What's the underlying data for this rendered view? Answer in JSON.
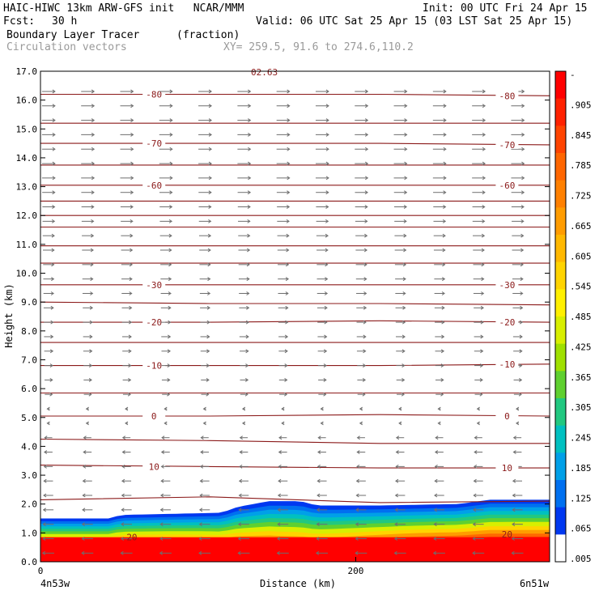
{
  "header": {
    "title_left": "HAIC-HIWC 13km ARW-GFS init   NCAR/MMM",
    "init": "Init: 00 UTC Fri 24 Apr 15",
    "fcst_label": "Fcst:",
    "fcst_value": "30 h",
    "valid": "Valid: 06 UTC Sat 25 Apr 15 (03 LST Sat 25 Apr 15)",
    "field_name": "Boundary Layer Tracer",
    "field_units": "(fraction)",
    "vector_name": "Circulation vectors",
    "xy": "XY= 259.5, 91.6 to 274.6,110.2"
  },
  "chart_data": {
    "type": "heatmap",
    "title": "Boundary Layer Tracer",
    "xlabel": "Distance (km)",
    "ylabel": "Height (km)",
    "xlim": [
      0,
      323
    ],
    "ylim": [
      0.0,
      17.0
    ],
    "x_ticks": [
      {
        "value": 0,
        "label": "0"
      },
      {
        "value": 200,
        "label": "200"
      }
    ],
    "x_end_labels": {
      "left": "4n53w",
      "right": "6n51w"
    },
    "y_ticks": [
      "0.0",
      "1.0",
      "2.0",
      "3.0",
      "4.0",
      "5.0",
      "6.0",
      "7.0",
      "8.0",
      "9.0",
      "10.0",
      "11.0",
      "12.0",
      "13.0",
      "14.0",
      "15.0",
      "16.0",
      "17.0"
    ],
    "colorbar": {
      "labels": [
        "-",
        ".905",
        ".845",
        ".785",
        ".725",
        ".665",
        ".605",
        ".545",
        ".485",
        ".425",
        ".365",
        ".305",
        ".245",
        ".185",
        ".125",
        ".065",
        ".005"
      ],
      "colors": [
        "#ff0000",
        "#ff2200",
        "#ff4400",
        "#ff6600",
        "#ff8000",
        "#ff9c00",
        "#ffb800",
        "#ffd400",
        "#fff000",
        "#d8ef00",
        "#9fe000",
        "#5fd030",
        "#22c880",
        "#00c0c0",
        "#00a0e8",
        "#0070f0",
        "#0038f0",
        "#ffffff"
      ]
    },
    "tracer_top_km": [
      {
        "x": 0,
        "y": 1.5
      },
      {
        "x": 45,
        "y": 1.5
      },
      {
        "x": 50,
        "y": 1.62
      },
      {
        "x": 115,
        "y": 1.7
      },
      {
        "x": 125,
        "y": 1.9
      },
      {
        "x": 145,
        "y": 2.1
      },
      {
        "x": 165,
        "y": 2.1
      },
      {
        "x": 175,
        "y": 1.95
      },
      {
        "x": 215,
        "y": 1.95
      },
      {
        "x": 265,
        "y": 2.0
      },
      {
        "x": 285,
        "y": 2.15
      },
      {
        "x": 323,
        "y": 2.15
      }
    ],
    "contours": [
      {
        "label": "10",
        "y": [
          3.35,
          3.3,
          3.25,
          3.25
        ]
      },
      {
        "label": "0",
        "y": [
          5.05,
          5.05,
          5.1,
          5.05
        ]
      },
      {
        "label": "-10",
        "y": [
          6.8,
          6.8,
          6.8,
          6.85
        ]
      },
      {
        "label": "-20",
        "y": [
          8.3,
          8.3,
          8.35,
          8.3
        ]
      },
      {
        "label": "-30",
        "y": [
          9.6,
          9.6,
          9.6,
          9.6
        ]
      },
      {
        "label": "-60",
        "y": [
          13.05,
          13.05,
          13.05,
          13.05
        ]
      },
      {
        "label": "-70",
        "y": [
          14.5,
          14.5,
          14.5,
          14.45
        ]
      },
      {
        "label": "-80",
        "y": [
          16.2,
          16.2,
          16.2,
          16.15
        ]
      },
      {
        "label": "",
        "y": [
          2.15,
          2.25,
          2.05,
          2.1
        ]
      },
      {
        "label": "",
        "y": [
          4.25,
          4.2,
          4.1,
          4.1
        ]
      },
      {
        "label": "",
        "y": [
          5.85,
          5.85,
          5.85,
          5.85
        ]
      },
      {
        "label": "",
        "y": [
          7.6,
          7.6,
          7.6,
          7.6
        ]
      },
      {
        "label": "",
        "y": [
          9.0,
          8.95,
          8.95,
          8.9
        ]
      },
      {
        "label": "",
        "y": [
          10.35,
          10.35,
          10.35,
          10.35
        ]
      },
      {
        "label": "",
        "y": [
          10.95,
          10.95,
          10.95,
          10.95
        ]
      },
      {
        "label": "",
        "y": [
          11.6,
          11.6,
          11.6,
          11.6
        ]
      },
      {
        "label": "",
        "y": [
          12.0,
          12.0,
          12.0,
          12.0
        ]
      },
      {
        "label": "",
        "y": [
          12.5,
          12.5,
          12.5,
          12.5
        ]
      },
      {
        "label": "",
        "y": [
          13.75,
          13.75,
          13.75,
          13.75
        ]
      },
      {
        "label": "",
        "y": [
          15.2,
          15.2,
          15.2,
          15.2
        ]
      }
    ],
    "contour_labels_extra": [
      {
        "label": "-80",
        "side": "right",
        "y": 16.15
      },
      {
        "label": "-70",
        "side": "right",
        "y": 14.45
      },
      {
        "label": "-60",
        "side": "right",
        "y": 13.05
      },
      {
        "label": "-30",
        "side": "right",
        "y": 9.6
      },
      {
        "label": "-20",
        "side": "right",
        "y": 8.3
      },
      {
        "label": "-10",
        "side": "right",
        "y": 6.85
      },
      {
        "label": "0",
        "side": "right",
        "y": 5.05
      },
      {
        "label": "10",
        "side": "right",
        "y": 3.25
      },
      {
        "label": "20",
        "side": "right",
        "y": 0.95
      },
      {
        "label": "20",
        "side": "left",
        "y": 0.85
      },
      {
        "label": "02.63",
        "side": "top",
        "y": 17.0
      }
    ],
    "wind_regime": {
      "upper_direction": "east",
      "lower_direction": "west",
      "transition_km": 5.5
    },
    "grid": false,
    "colors": {
      "contour": "#8b1a1a",
      "vector": "#6e6e6e"
    }
  }
}
